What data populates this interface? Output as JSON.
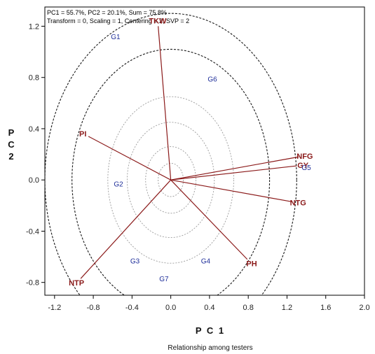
{
  "chart_data": {
    "type": "scatter",
    "annotations": [
      "PC1 = 55.7%, PC2 = 20.1%, Sum = 75.8%",
      "Transform = 0, Scaling = 1, Centering = 2, SVP = 2"
    ],
    "xlabel": "P C 1",
    "ylabel": [
      "P",
      "C",
      "2"
    ],
    "caption": "Relationship among testers",
    "xlim": [
      -1.3,
      2.0
    ],
    "ylim": [
      -0.9,
      1.35
    ],
    "x_ticks": [
      -1.2,
      -0.8,
      -0.4,
      0.0,
      0.4,
      0.8,
      1.2,
      1.6,
      2.0
    ],
    "x_tick_labels": [
      "-1.2",
      "-0.8",
      "-0.4",
      "0.0",
      "0.4",
      "0.8",
      "1.2",
      "1.6",
      "2.0"
    ],
    "y_ticks": [
      -0.8,
      -0.4,
      0.0,
      0.4,
      0.8,
      1.2
    ],
    "y_tick_labels": [
      "-0.8",
      "-0.4",
      "0.0",
      "0.4",
      "0.8",
      "1.2"
    ],
    "dashed_circle_radii": [
      0.13,
      0.26,
      0.45,
      0.65,
      1.02,
      1.3
    ],
    "colors": {
      "vectors": "#8b1a1a",
      "genotypes": "#1f2f9a",
      "inner_circles": "#9a9a9a",
      "outer_circles": "#1a1a1a"
    },
    "vectors": [
      {
        "label": "TKW",
        "x": -0.13,
        "y": 1.2
      },
      {
        "label": "PI",
        "x": -0.85,
        "y": 0.34
      },
      {
        "label": "NFG",
        "x": 1.32,
        "y": 0.18
      },
      {
        "label": "GY",
        "x": 1.3,
        "y": 0.11
      },
      {
        "label": "NTG",
        "x": 1.25,
        "y": -0.17
      },
      {
        "label": "PH",
        "x": 0.79,
        "y": -0.62
      },
      {
        "label": "NTP",
        "x": -0.93,
        "y": -0.77
      }
    ],
    "genotypes": [
      {
        "label": "G1",
        "x": -0.57,
        "y": 1.12
      },
      {
        "label": "G2",
        "x": -0.54,
        "y": -0.03
      },
      {
        "label": "G3",
        "x": -0.37,
        "y": -0.63
      },
      {
        "label": "G4",
        "x": 0.36,
        "y": -0.63
      },
      {
        "label": "G5",
        "x": 1.4,
        "y": 0.1
      },
      {
        "label": "G6",
        "x": 0.43,
        "y": 0.79
      },
      {
        "label": "G7",
        "x": -0.07,
        "y": -0.77
      }
    ]
  }
}
